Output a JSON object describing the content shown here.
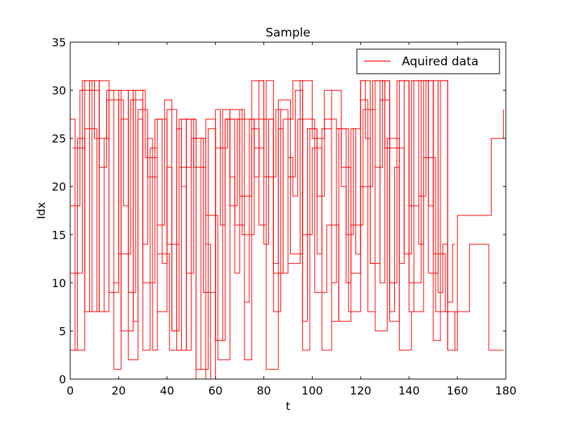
{
  "chart_data": {
    "type": "line",
    "title": "Sample",
    "xlabel": "t",
    "ylabel": "Idx",
    "xlim": [
      0,
      180
    ],
    "ylim": [
      0,
      35
    ],
    "xticks": [
      0,
      20,
      40,
      60,
      80,
      100,
      120,
      140,
      160,
      180
    ],
    "yticks": [
      0,
      5,
      10,
      15,
      20,
      25,
      30,
      35
    ],
    "grid": false,
    "legend_position": "top-right",
    "series": [
      {
        "name": "Aquired data",
        "color": "#ff0000",
        "segments": [
          {
            "x": [
              0,
              2,
              4,
              6,
              8,
              10,
              12,
              14,
              16,
              18,
              20,
              22,
              24,
              26,
              28,
              30,
              32,
              34,
              36,
              38,
              40,
              42,
              44,
              46,
              48,
              50,
              52,
              54,
              56,
              58,
              60,
              62,
              64,
              66,
              68,
              70,
              72,
              74,
              76,
              78,
              80,
              82,
              84,
              86,
              88,
              90,
              92,
              94,
              96,
              98,
              100,
              102,
              104,
              106,
              108,
              110,
              112,
              114,
              116,
              118,
              120,
              122,
              124,
              126,
              128,
              130,
              132,
              134,
              136,
              138,
              140,
              142,
              144,
              146,
              148,
              150,
              152,
              154,
              156,
              158,
              159
            ],
            "y": [
              27,
              3,
              3,
              31,
              30,
              30,
              7,
              25,
              30,
              10,
              29,
              18,
              30,
              6,
              27,
              14,
              25,
              3,
              27,
              12,
              22,
              5,
              26,
              20,
              3,
              27,
              1,
              25,
              14,
              0,
              28,
              16,
              27,
              21,
              11,
              28,
              8,
              27,
              21,
              31,
              14,
              27,
              12,
              26,
              11,
              23,
              19,
              27,
              6,
              26,
              26,
              13,
              26,
              26,
              10,
              26,
              20,
              10,
              26,
              13,
              31,
              25,
              12,
              31,
              10,
              31,
              7,
              22,
              12,
              31,
              7,
              31,
              14,
              31,
              18,
              31,
              9,
              14,
              8,
              14,
              14
            ]
          },
          {
            "x": [
              0,
              3,
              6,
              9,
              12,
              15,
              18,
              21,
              24,
              27,
              30,
              33,
              36,
              39,
              42,
              45,
              48,
              51,
              54,
              57,
              60,
              63,
              66,
              69,
              72,
              75,
              78,
              81,
              84,
              87,
              90,
              93,
              96,
              99,
              102,
              105,
              108,
              111,
              114,
              117,
              120,
              123,
              126,
              129,
              132,
              135,
              138,
              141,
              144,
              147,
              150,
              153,
              156,
              159
            ],
            "y": [
              3,
              25,
              7,
              31,
              22,
              30,
              1,
              27,
              9,
              30,
              3,
              24,
              16,
              29,
              5,
              27,
              11,
              25,
              1,
              26,
              4,
              28,
              18,
              27,
              2,
              26,
              16,
              31,
              7,
              28,
              21,
              30,
              3,
              26,
              19,
              30,
              6,
              26,
              15,
              26,
              29,
              7,
              22,
              31,
              10,
              24,
              13,
              31,
              19,
              31,
              4,
              31,
              7,
              3
            ]
          },
          {
            "x": [
              0,
              4,
              8,
              12,
              16,
              20,
              24,
              28,
              32,
              36,
              40,
              44,
              48,
              52,
              56,
              60,
              64,
              68,
              72,
              76,
              80,
              84,
              88,
              92,
              96,
              100,
              104,
              108,
              112,
              116,
              120,
              124,
              128,
              132,
              136,
              140,
              144,
              148,
              152,
              156,
              160,
              165,
              170,
              174,
              178,
              179
            ],
            "y": [
              18,
              30,
              7,
              31,
              9,
              30,
              2,
              28,
              21,
              7,
              28,
              3,
              27,
              0,
              27,
              4,
              27,
              16,
              27,
              24,
              27,
              11,
              27,
              31,
              15,
              24,
              3,
              30,
              22,
              11,
              31,
              12,
              29,
              6,
              31,
              18,
              31,
              11,
              31,
              3,
              17,
              17,
              17,
              25,
              25,
              28
            ]
          },
          {
            "x": [
              0,
              5,
              10,
              15,
              20,
              25,
              30,
              35,
              40,
              45,
              50,
              55,
              60,
              65,
              70,
              75,
              80,
              85,
              90,
              95,
              100,
              105,
              110,
              115,
              120,
              125,
              130,
              135,
              140,
              145,
              150,
              155,
              160,
              165,
              170,
              173,
              176,
              179
            ],
            "y": [
              11,
              31,
              25,
              29,
              13,
              29,
              10,
              27,
              14,
              22,
              25,
              9,
              24,
              27,
              19,
              31,
              21,
              28,
              12,
              31,
              25,
              27,
              26,
              7,
              20,
              31,
              24,
              31,
              10,
              31,
              13,
              7,
              7,
              14,
              14,
              3,
              3,
              3
            ]
          },
          {
            "x": [
              1,
              6,
              11,
              16,
              21,
              26,
              31,
              36,
              41,
              46,
              51,
              56,
              61,
              66,
              71,
              76,
              81,
              86,
              91,
              96,
              101,
              106,
              111,
              116,
              121,
              126,
              131,
              136,
              141,
              146,
              151,
              156
            ],
            "y": [
              24,
              26,
              7,
              30,
              5,
              30,
              23,
              13,
              3,
              27,
              22,
              17,
              2,
              28,
              15,
              27,
              1,
              29,
              13,
              27,
              9,
              16,
              6,
              16,
              28,
              5,
              25,
              3,
              7,
              23,
              7,
              3
            ]
          }
        ]
      }
    ]
  }
}
